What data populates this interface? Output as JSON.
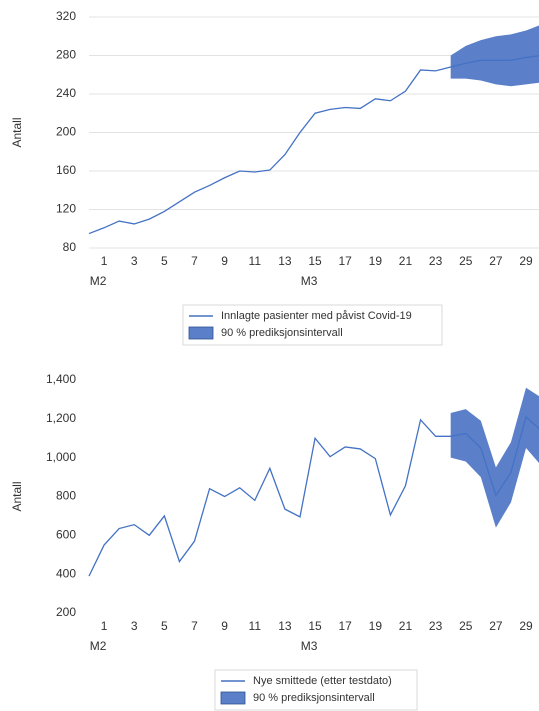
{
  "chart_data": [
    {
      "type": "line",
      "y_label": "Antall",
      "categories": [
        null,
        "1",
        null,
        "3",
        null,
        "5",
        null,
        "7",
        null,
        "9",
        null,
        "11",
        null,
        "13",
        null,
        "15",
        null,
        "17",
        null,
        "19",
        null,
        "21",
        null,
        "23",
        null,
        "25",
        null,
        "27",
        null,
        "29",
        null
      ],
      "category_groups": [
        null,
        "M2",
        null,
        null,
        null,
        null,
        null,
        null,
        null,
        null,
        null,
        null,
        null,
        null,
        null,
        "M3",
        null,
        null,
        null,
        null,
        null,
        null,
        null,
        null,
        null,
        null,
        null,
        null,
        null,
        null,
        null
      ],
      "ylim": [
        80,
        320
      ],
      "yticks": [
        80,
        120,
        160,
        200,
        240,
        280,
        320
      ],
      "grid": true,
      "series": [
        {
          "name": "Innlagte pasienter med påvist Covid-19",
          "color": "#4472c4",
          "values": [
            95,
            101,
            108,
            105,
            110,
            118,
            128,
            138,
            145,
            153,
            160,
            159,
            161,
            177,
            200,
            220,
            224,
            226,
            225,
            235,
            233,
            243,
            265,
            264,
            268,
            272,
            275,
            275,
            275,
            278,
            280
          ]
        },
        {
          "name": "90 % prediksjonsintervall",
          "color": "#5b7fc9",
          "type": "band",
          "lower": [
            null,
            null,
            null,
            null,
            null,
            null,
            null,
            null,
            null,
            null,
            null,
            null,
            null,
            null,
            null,
            null,
            null,
            null,
            null,
            null,
            null,
            null,
            null,
            null,
            256,
            256,
            254,
            250,
            248,
            250,
            252
          ],
          "upper": [
            null,
            null,
            null,
            null,
            null,
            null,
            null,
            null,
            null,
            null,
            null,
            null,
            null,
            null,
            null,
            null,
            null,
            null,
            null,
            null,
            null,
            null,
            null,
            null,
            280,
            290,
            296,
            300,
            302,
            306,
            312
          ]
        }
      ]
    },
    {
      "type": "line",
      "y_label": "Antall",
      "categories": [
        null,
        "1",
        null,
        "3",
        null,
        "5",
        null,
        "7",
        null,
        "9",
        null,
        "11",
        null,
        "13",
        null,
        "15",
        null,
        "17",
        null,
        "19",
        null,
        "21",
        null,
        "23",
        null,
        "25",
        null,
        "27",
        null,
        "29",
        null
      ],
      "category_groups": [
        null,
        "M2",
        null,
        null,
        null,
        null,
        null,
        null,
        null,
        null,
        null,
        null,
        null,
        null,
        null,
        "M3",
        null,
        null,
        null,
        null,
        null,
        null,
        null,
        null,
        null,
        null,
        null,
        null,
        null,
        null,
        null
      ],
      "ylim": [
        200,
        1400
      ],
      "yticks": [
        200,
        400,
        600,
        800,
        {
          "value": 1000,
          "label": "1,000"
        },
        {
          "value": 1200,
          "label": "1,200"
        },
        {
          "value": 1400,
          "label": "1,400"
        }
      ],
      "grid": false,
      "series": [
        {
          "name": "Nye smittede (etter testdato)",
          "color": "#4472c4",
          "values": [
            390,
            550,
            635,
            655,
            600,
            700,
            465,
            570,
            840,
            800,
            845,
            780,
            945,
            735,
            695,
            1100,
            1005,
            1055,
            1045,
            995,
            705,
            855,
            1195,
            1110,
            1110,
            1125,
            1050,
            805,
            925,
            1210,
            1140
          ]
        },
        {
          "name": "90 % prediksjonsintervall",
          "color": "#5b7fc9",
          "type": "band",
          "lower": [
            null,
            null,
            null,
            null,
            null,
            null,
            null,
            null,
            null,
            null,
            null,
            null,
            null,
            null,
            null,
            null,
            null,
            null,
            null,
            null,
            null,
            null,
            null,
            null,
            1000,
            980,
            900,
            640,
            770,
            1050,
            960
          ],
          "upper": [
            null,
            null,
            null,
            null,
            null,
            null,
            null,
            null,
            null,
            null,
            null,
            null,
            null,
            null,
            null,
            null,
            null,
            null,
            null,
            null,
            null,
            null,
            null,
            null,
            1230,
            1250,
            1190,
            950,
            1080,
            1360,
            1310
          ]
        }
      ]
    }
  ]
}
